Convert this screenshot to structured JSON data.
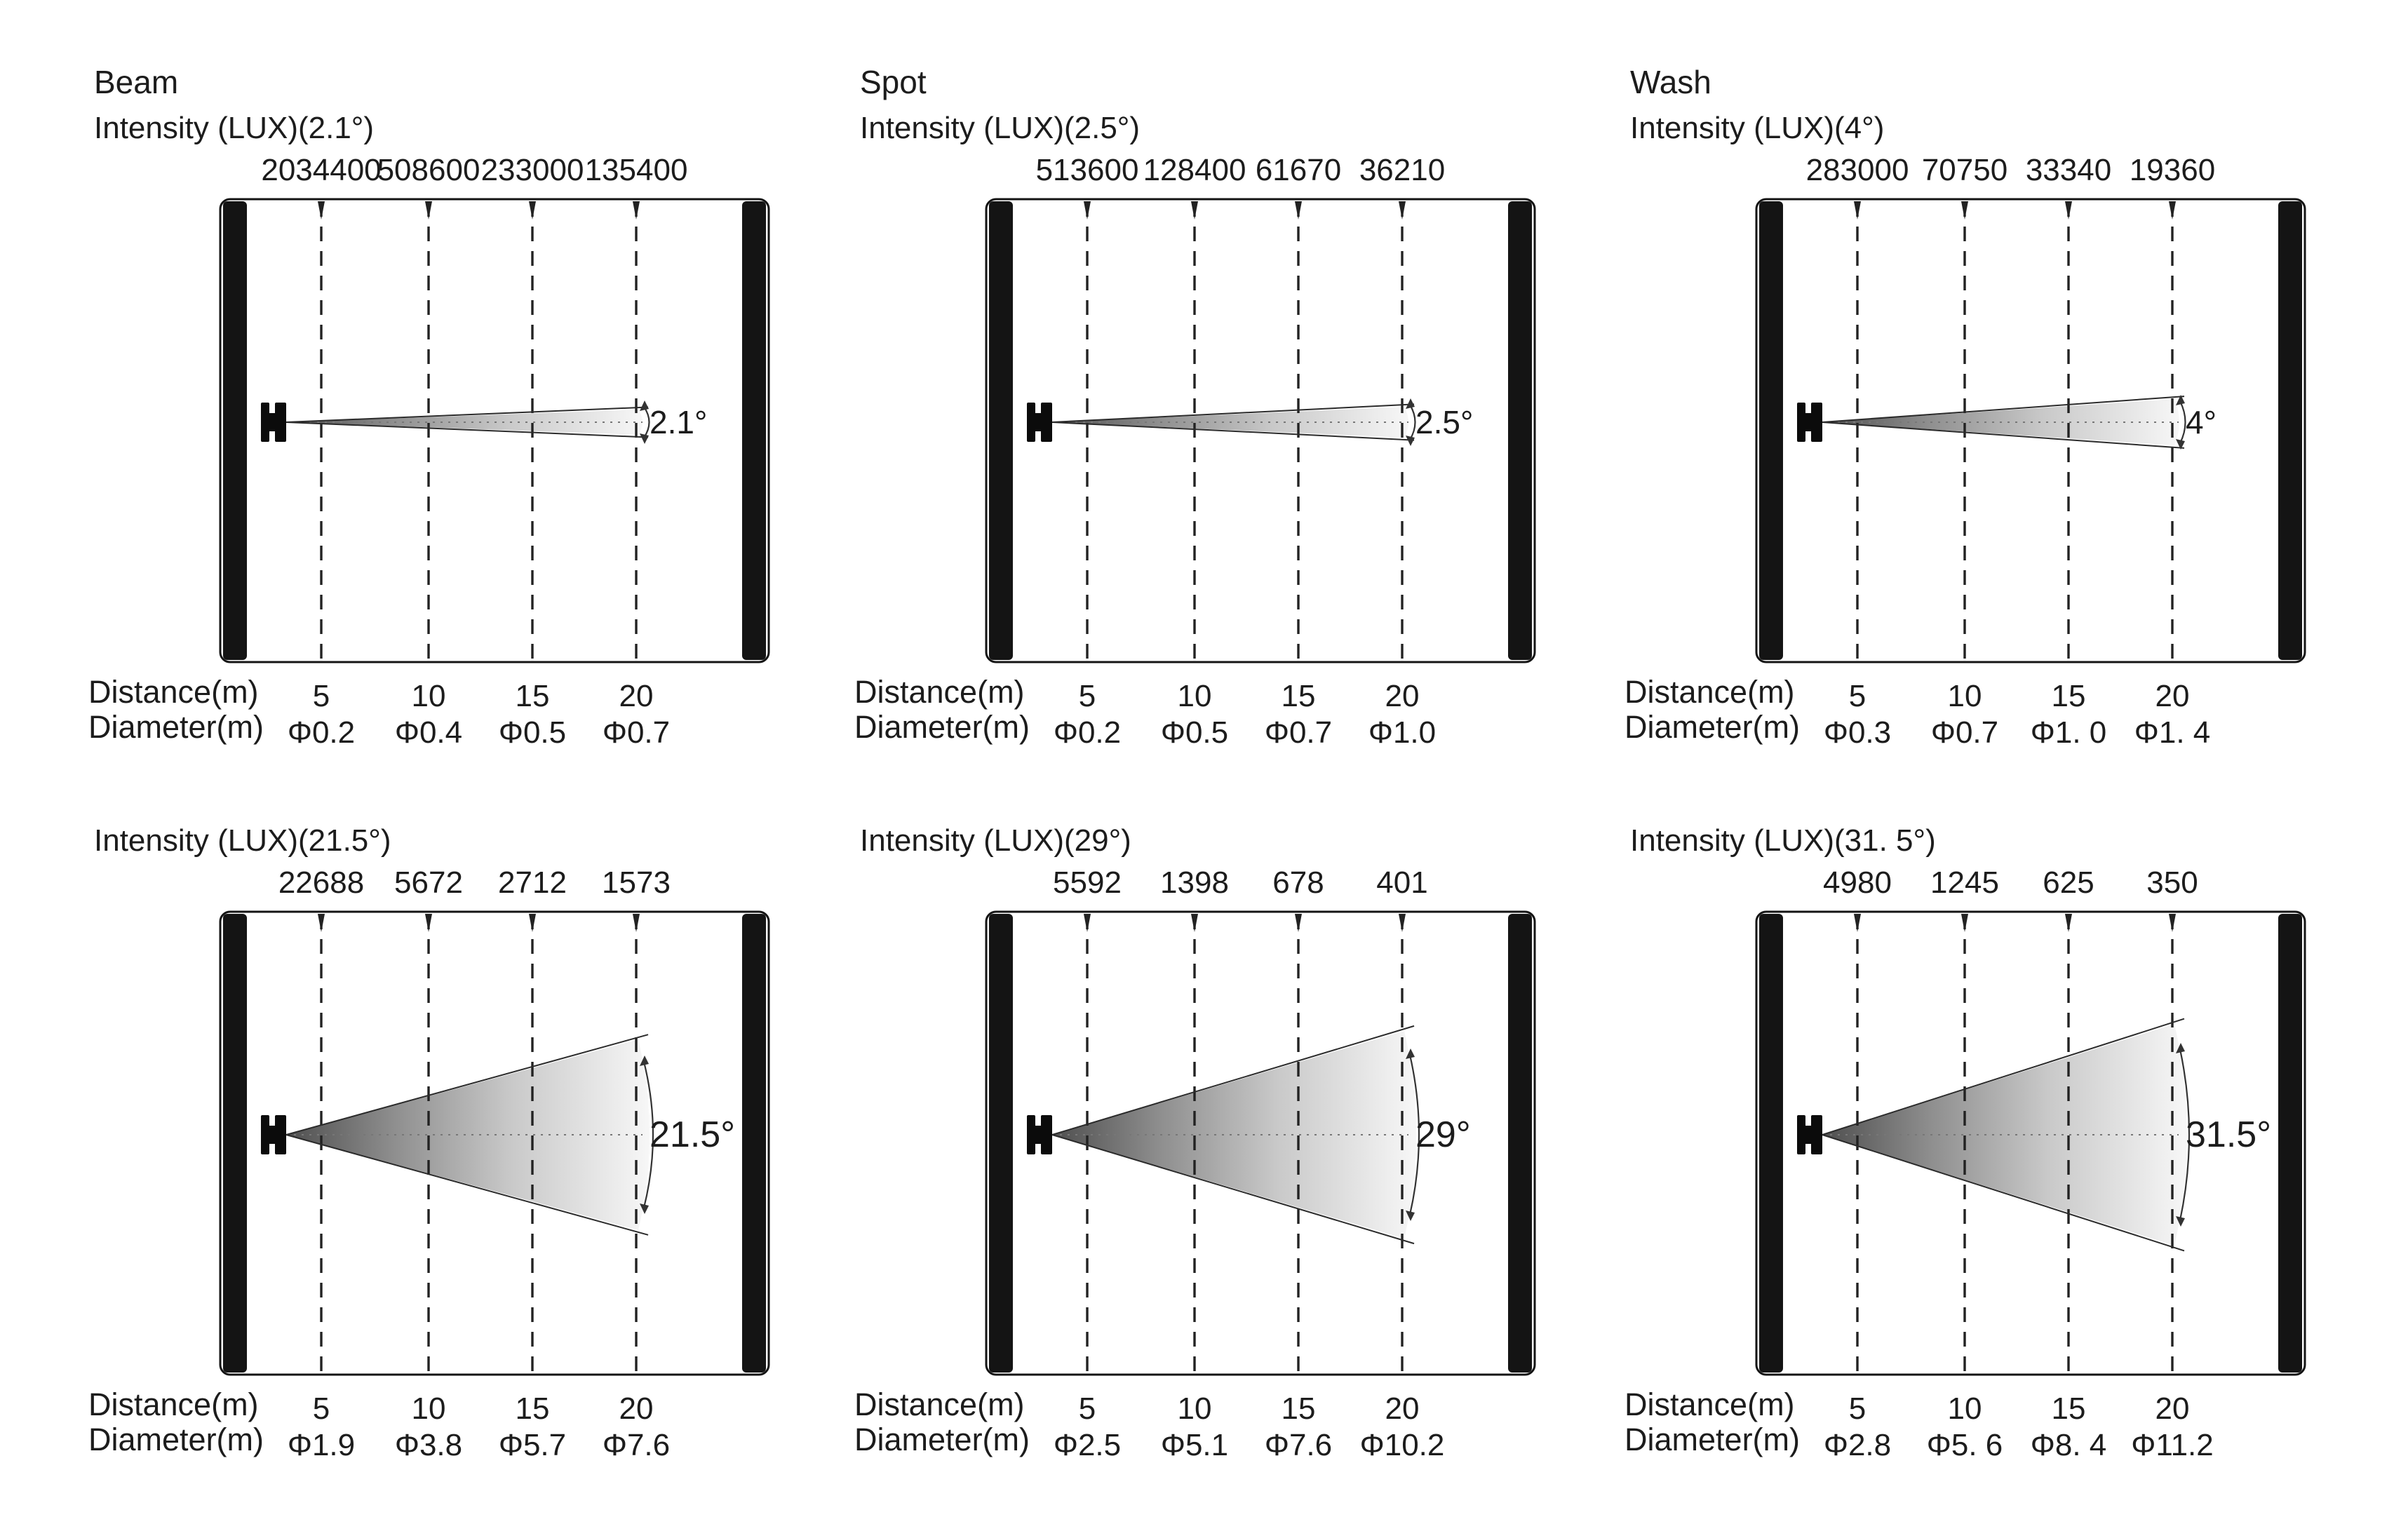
{
  "labels": {
    "distance": "Distance(m)",
    "diameter": "Diameter(m)"
  },
  "panels": [
    {
      "title": "Beam",
      "intensity_label": "Intensity (LUX)(2.1°)",
      "intensity_values": [
        "2034400",
        "508600",
        "233000",
        "135400"
      ],
      "angle_label": "2.1°",
      "distances": [
        "5",
        "10",
        "15",
        "20"
      ],
      "diameters": [
        "Φ0.2",
        "Φ0.4",
        "Φ0.5",
        "Φ0.7"
      ]
    },
    {
      "title": "Spot",
      "intensity_label": "Intensity (LUX)(2.5°)",
      "intensity_values": [
        "513600",
        "128400",
        "61670",
        "36210"
      ],
      "angle_label": "2.5°",
      "distances": [
        "5",
        "10",
        "15",
        "20"
      ],
      "diameters": [
        "Φ0.2",
        "Φ0.5",
        "Φ0.7",
        "Φ1.0"
      ]
    },
    {
      "title": "Wash",
      "intensity_label": "Intensity (LUX)(4°)",
      "intensity_values": [
        "283000",
        "70750",
        "33340",
        "19360"
      ],
      "angle_label": "4°",
      "distances": [
        "5",
        "10",
        "15",
        "20"
      ],
      "diameters": [
        "Φ0.3",
        "Φ0.7",
        "Φ1. 0",
        "Φ1. 4"
      ]
    },
    {
      "intensity_label": "Intensity (LUX)(21.5°)",
      "intensity_values": [
        "22688",
        "5672",
        "2712",
        "1573"
      ],
      "angle_label": "21.5°",
      "distances": [
        "5",
        "10",
        "15",
        "20"
      ],
      "diameters": [
        "Φ1.9",
        "Φ3.8",
        "Φ5.7",
        "Φ7.6"
      ]
    },
    {
      "intensity_label": "Intensity (LUX)(29°)",
      "intensity_values": [
        "5592",
        "1398",
        "678",
        "401"
      ],
      "angle_label": "29°",
      "distances": [
        "5",
        "10",
        "15",
        "20"
      ],
      "diameters": [
        "Φ2.5",
        "Φ5.1",
        "Φ7.6",
        "Φ10.2"
      ]
    },
    {
      "intensity_label": "Intensity (LUX)(31. 5°)",
      "intensity_values": [
        "4980",
        "1245",
        "625",
        "350"
      ],
      "angle_label": "31.5°",
      "distances": [
        "5",
        "10",
        "15",
        "20"
      ],
      "diameters": [
        "Φ2.8",
        "Φ5. 6",
        "Φ8. 4",
        "Φ11.2"
      ]
    }
  ]
}
